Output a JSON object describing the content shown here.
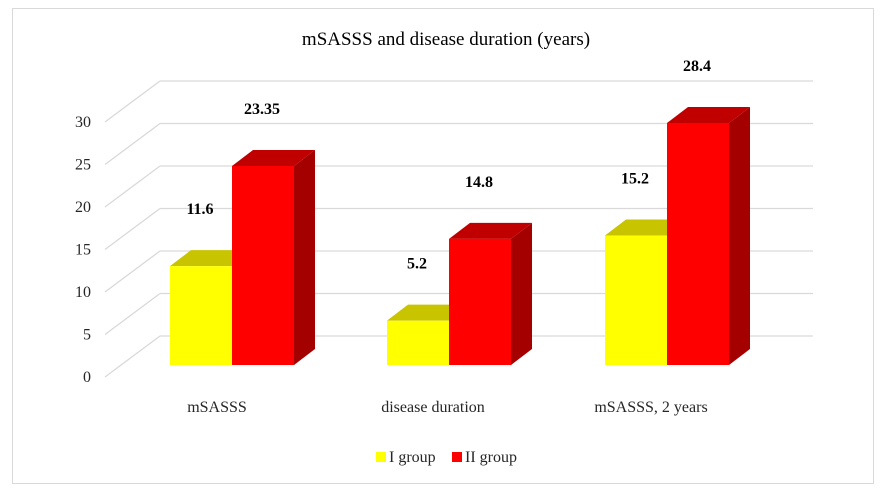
{
  "chart_data": {
    "type": "bar",
    "style": "3d-clustered-column",
    "title": "mSASSS and disease duration (years)",
    "xlabel": "",
    "ylabel": "",
    "categories": [
      "mSASSS",
      "disease duration",
      "mSASSS, 2 years"
    ],
    "series": [
      {
        "name": "I group",
        "values": [
          11.6,
          5.2,
          15.2
        ],
        "color": "#FFFF00",
        "top_color": "#C8C400",
        "side_color": "#B0AC00"
      },
      {
        "name": "II group",
        "values": [
          23.35,
          14.8,
          28.4
        ],
        "color": "#FF0000",
        "top_color": "#C00000",
        "side_color": "#A50000"
      }
    ],
    "data_labels": [
      [
        "11.6",
        "5.2",
        "15.2"
      ],
      [
        "23.35",
        "14.8",
        "28.4"
      ]
    ],
    "ylim": [
      0,
      30
    ],
    "yticks": [
      "0",
      "5",
      "10",
      "15",
      "20",
      "25",
      "30"
    ],
    "grid": true,
    "legend_position": "bottom"
  }
}
